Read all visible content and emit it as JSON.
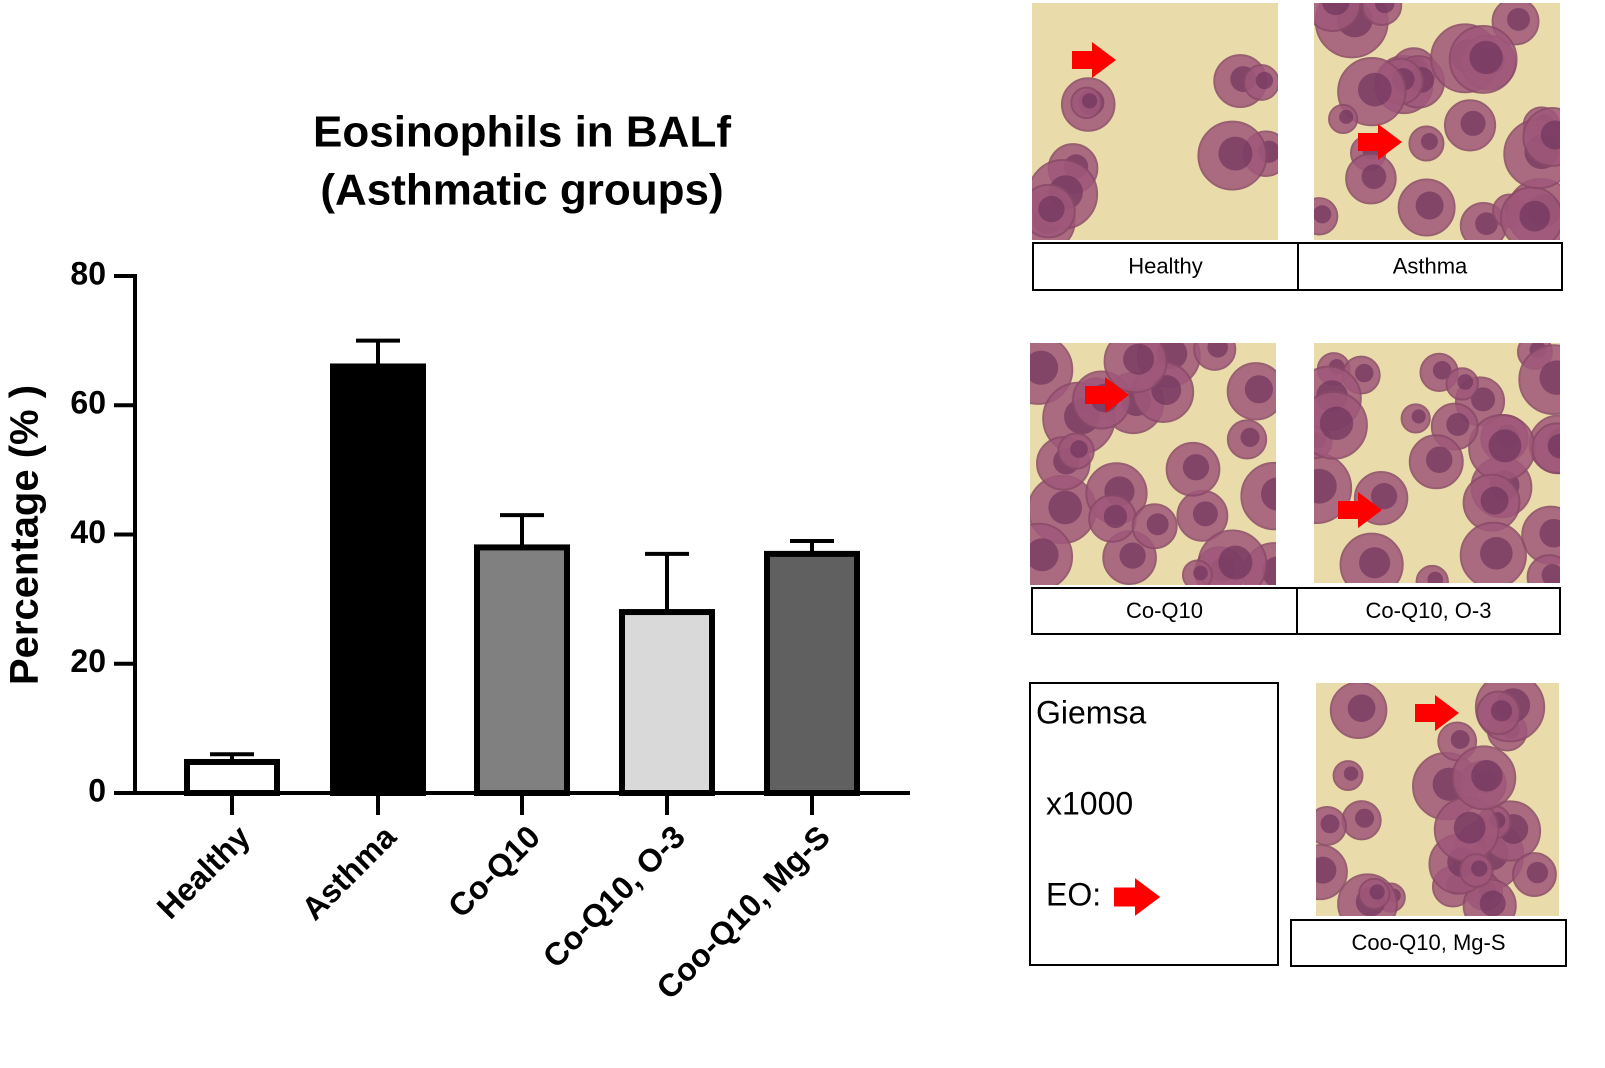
{
  "chart_data": {
    "type": "bar",
    "title": [
      "Eosinophils in BALf",
      "(Asthmatic groups)"
    ],
    "y_label": "Percentage (% )",
    "categories": [
      "Healthy",
      "Asthma",
      "Co-Q10",
      "Co-Q10, O-3",
      "Coo-Q10, Mg-S"
    ],
    "values": [
      4.8,
      66,
      38,
      28,
      37
    ],
    "errors": [
      1.2,
      4,
      5,
      9,
      2
    ],
    "colors": [
      "#ffffff",
      "#000000",
      "#808080",
      "#d9d9d9",
      "#606060"
    ],
    "ylim": [
      0,
      80
    ],
    "yticks": [
      0,
      20,
      40,
      60,
      80
    ],
    "grid": false
  },
  "micrograph_labels": [
    "Healthy",
    "Asthma",
    "Co-Q10",
    "Co-Q10, O-3",
    "Coo-Q10, Mg-S"
  ],
  "stain_key": {
    "stain": "Giemsa",
    "magnification": "x1000",
    "marker": "EO:"
  }
}
